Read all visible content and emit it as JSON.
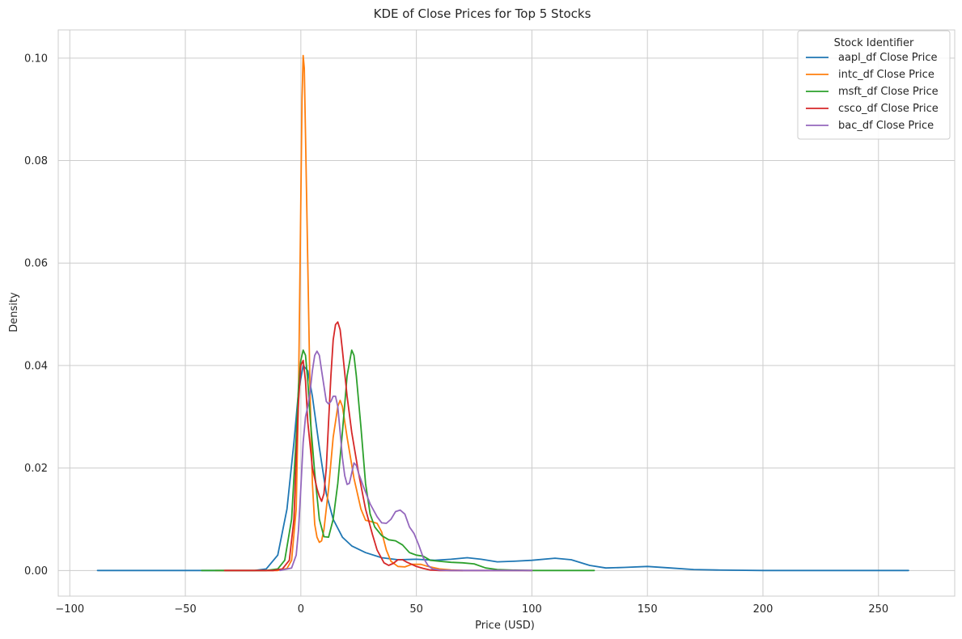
{
  "chart_data": {
    "type": "line",
    "title": "KDE of Close Prices for Top 5 Stocks",
    "xlabel": "Price (USD)",
    "ylabel": "Density",
    "xlim": [
      -105,
      283
    ],
    "ylim": [
      -0.005,
      0.1055
    ],
    "x_ticks": [
      -100,
      -50,
      0,
      50,
      100,
      150,
      200,
      250
    ],
    "y_ticks": [
      0.0,
      0.02,
      0.04,
      0.06,
      0.08,
      0.1
    ],
    "x_tick_labels": [
      "−100",
      "−50",
      "0",
      "50",
      "100",
      "150",
      "200",
      "250"
    ],
    "y_tick_labels": [
      "0.00",
      "0.02",
      "0.04",
      "0.06",
      "0.08",
      "0.10"
    ],
    "grid": true,
    "legend": {
      "title": "Stock Identifier",
      "placement": "top-right"
    },
    "series": [
      {
        "name": "aapl_df Close Price",
        "color": "#1f77b4",
        "points": [
          [
            -88,
            0
          ],
          [
            -20,
            0
          ],
          [
            -15,
            0.0003
          ],
          [
            -10,
            0.003
          ],
          [
            -6,
            0.012
          ],
          [
            -3,
            0.025
          ],
          [
            -1,
            0.035
          ],
          [
            1,
            0.04
          ],
          [
            3,
            0.039
          ],
          [
            5,
            0.034
          ],
          [
            8,
            0.024
          ],
          [
            11,
            0.015
          ],
          [
            14,
            0.01
          ],
          [
            18,
            0.0065
          ],
          [
            22,
            0.0048
          ],
          [
            28,
            0.0035
          ],
          [
            35,
            0.0025
          ],
          [
            42,
            0.0021
          ],
          [
            50,
            0.0022
          ],
          [
            58,
            0.002
          ],
          [
            65,
            0.0022
          ],
          [
            72,
            0.0025
          ],
          [
            78,
            0.0022
          ],
          [
            85,
            0.0017
          ],
          [
            92,
            0.0018
          ],
          [
            100,
            0.002
          ],
          [
            110,
            0.0024
          ],
          [
            117,
            0.0021
          ],
          [
            125,
            0.001
          ],
          [
            132,
            0.0005
          ],
          [
            140,
            0.0006
          ],
          [
            150,
            0.0008
          ],
          [
            160,
            0.0005
          ],
          [
            170,
            0.0002
          ],
          [
            180,
            0.0001
          ],
          [
            200,
            0
          ],
          [
            263,
            0
          ]
        ]
      },
      {
        "name": "intc_df Close Price",
        "color": "#ff7f0e",
        "points": [
          [
            -37,
            0
          ],
          [
            -10,
            0
          ],
          [
            -6,
            0.0004
          ],
          [
            -4,
            0.002
          ],
          [
            -2,
            0.012
          ],
          [
            -1,
            0.035
          ],
          [
            0,
            0.072
          ],
          [
            0.5,
            0.092
          ],
          [
            1,
            0.1005
          ],
          [
            1.5,
            0.098
          ],
          [
            2,
            0.085
          ],
          [
            3,
            0.06
          ],
          [
            4,
            0.034
          ],
          [
            5,
            0.017
          ],
          [
            6,
            0.009
          ],
          [
            7,
            0.0065
          ],
          [
            8,
            0.0055
          ],
          [
            9,
            0.0058
          ],
          [
            10,
            0.008
          ],
          [
            12,
            0.016
          ],
          [
            14,
            0.026
          ],
          [
            16,
            0.032
          ],
          [
            17,
            0.0332
          ],
          [
            18,
            0.032
          ],
          [
            20,
            0.026
          ],
          [
            23,
            0.018
          ],
          [
            26,
            0.012
          ],
          [
            28,
            0.0098
          ],
          [
            30,
            0.0096
          ],
          [
            33,
            0.0092
          ],
          [
            35,
            0.0075
          ],
          [
            37,
            0.004
          ],
          [
            39,
            0.0018
          ],
          [
            42,
            0.0008
          ],
          [
            45,
            0.0007
          ],
          [
            48,
            0.0012
          ],
          [
            52,
            0.0012
          ],
          [
            55,
            0.0008
          ],
          [
            60,
            0.0003
          ],
          [
            65,
            0.0001
          ],
          [
            70,
            0
          ]
        ]
      },
      {
        "name": "msft_df Close Price",
        "color": "#2ca02c",
        "points": [
          [
            -43,
            0
          ],
          [
            -15,
            0
          ],
          [
            -10,
            0.0003
          ],
          [
            -7,
            0.002
          ],
          [
            -4,
            0.01
          ],
          [
            -2,
            0.026
          ],
          [
            -1,
            0.036
          ],
          [
            0,
            0.041
          ],
          [
            1,
            0.043
          ],
          [
            2,
            0.042
          ],
          [
            3,
            0.037
          ],
          [
            4,
            0.03
          ],
          [
            6,
            0.019
          ],
          [
            8,
            0.01
          ],
          [
            10,
            0.0066
          ],
          [
            12,
            0.0065
          ],
          [
            14,
            0.01
          ],
          [
            16,
            0.017
          ],
          [
            18,
            0.027
          ],
          [
            20,
            0.038
          ],
          [
            22,
            0.043
          ],
          [
            23,
            0.042
          ],
          [
            24,
            0.038
          ],
          [
            26,
            0.028
          ],
          [
            28,
            0.017
          ],
          [
            30,
            0.011
          ],
          [
            32,
            0.0085
          ],
          [
            35,
            0.0068
          ],
          [
            38,
            0.006
          ],
          [
            41,
            0.0058
          ],
          [
            44,
            0.005
          ],
          [
            47,
            0.0035
          ],
          [
            50,
            0.003
          ],
          [
            53,
            0.0028
          ],
          [
            56,
            0.002
          ],
          [
            60,
            0.0018
          ],
          [
            65,
            0.0016
          ],
          [
            70,
            0.0015
          ],
          [
            75,
            0.0013
          ],
          [
            80,
            0.0005
          ],
          [
            85,
            0.0002
          ],
          [
            90,
            0.0001
          ],
          [
            100,
            0
          ],
          [
            127,
            0
          ]
        ]
      },
      {
        "name": "csco_df Close Price",
        "color": "#d62728",
        "points": [
          [
            -33,
            0
          ],
          [
            -12,
            0
          ],
          [
            -8,
            0.0003
          ],
          [
            -5,
            0.002
          ],
          [
            -3,
            0.01
          ],
          [
            -2,
            0.022
          ],
          [
            -1,
            0.033
          ],
          [
            0,
            0.04
          ],
          [
            1,
            0.041
          ],
          [
            2,
            0.037
          ],
          [
            3,
            0.029
          ],
          [
            5,
            0.02
          ],
          [
            7,
            0.016
          ],
          [
            8,
            0.0145
          ],
          [
            9,
            0.0135
          ],
          [
            10,
            0.015
          ],
          [
            11,
            0.02
          ],
          [
            12,
            0.029
          ],
          [
            13,
            0.038
          ],
          [
            14,
            0.045
          ],
          [
            15,
            0.048
          ],
          [
            16,
            0.0485
          ],
          [
            17,
            0.047
          ],
          [
            18,
            0.043
          ],
          [
            20,
            0.034
          ],
          [
            22,
            0.027
          ],
          [
            25,
            0.019
          ],
          [
            28,
            0.012
          ],
          [
            31,
            0.007
          ],
          [
            33,
            0.004
          ],
          [
            36,
            0.0015
          ],
          [
            38,
            0.001
          ],
          [
            40,
            0.0014
          ],
          [
            42,
            0.0021
          ],
          [
            44,
            0.0021
          ],
          [
            46,
            0.0016
          ],
          [
            48,
            0.0012
          ],
          [
            50,
            0.0008
          ],
          [
            53,
            0.0004
          ],
          [
            56,
            0.0001
          ],
          [
            60,
            0
          ],
          [
            100,
            0
          ]
        ]
      },
      {
        "name": "bac_df Close Price",
        "color": "#9467bd",
        "points": [
          [
            -9,
            0
          ],
          [
            -4,
            0.0005
          ],
          [
            -2,
            0.003
          ],
          [
            -1,
            0.008
          ],
          [
            0,
            0.016
          ],
          [
            1,
            0.025
          ],
          [
            2,
            0.03
          ],
          [
            3,
            0.032
          ],
          [
            4,
            0.035
          ],
          [
            5,
            0.039
          ],
          [
            6,
            0.042
          ],
          [
            7,
            0.0428
          ],
          [
            8,
            0.042
          ],
          [
            9,
            0.039
          ],
          [
            10,
            0.036
          ],
          [
            11,
            0.033
          ],
          [
            12,
            0.0325
          ],
          [
            13,
            0.033
          ],
          [
            14,
            0.034
          ],
          [
            15,
            0.034
          ],
          [
            16,
            0.032
          ],
          [
            17,
            0.027
          ],
          [
            18,
            0.022
          ],
          [
            19,
            0.0185
          ],
          [
            20,
            0.0168
          ],
          [
            21,
            0.017
          ],
          [
            22,
            0.019
          ],
          [
            23,
            0.021
          ],
          [
            24,
            0.0205
          ],
          [
            25,
            0.019
          ],
          [
            27,
            0.0165
          ],
          [
            30,
            0.013
          ],
          [
            33,
            0.0105
          ],
          [
            35,
            0.0093
          ],
          [
            37,
            0.0092
          ],
          [
            39,
            0.01
          ],
          [
            41,
            0.0115
          ],
          [
            43,
            0.0118
          ],
          [
            45,
            0.011
          ],
          [
            47,
            0.0085
          ],
          [
            49,
            0.0072
          ],
          [
            51,
            0.005
          ],
          [
            53,
            0.0025
          ],
          [
            55,
            0.001
          ],
          [
            57,
            0.0003
          ],
          [
            60,
            0.0001
          ],
          [
            65,
            0
          ],
          [
            100,
            0
          ]
        ]
      }
    ]
  }
}
